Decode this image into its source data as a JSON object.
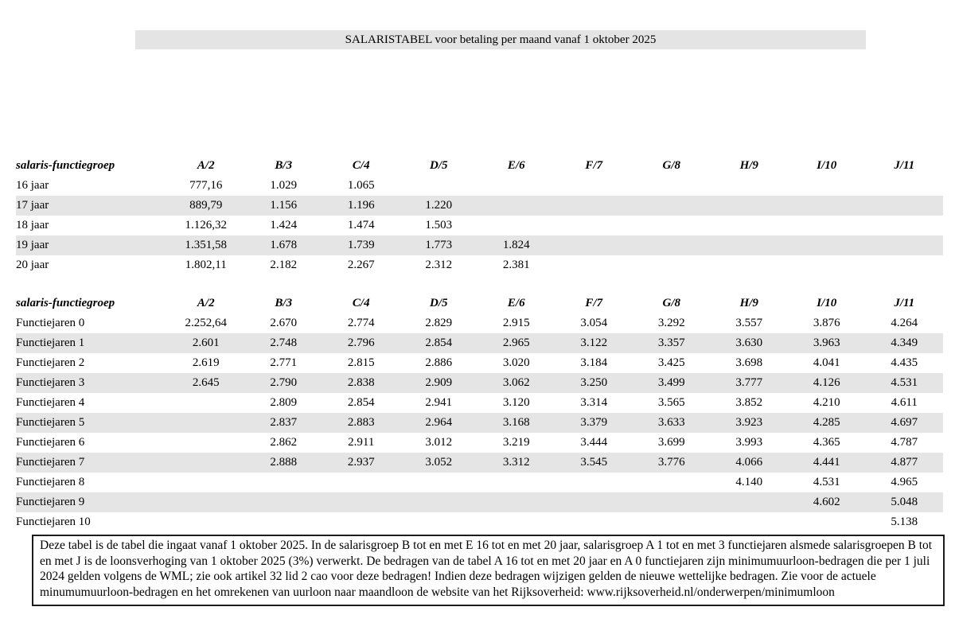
{
  "title_bar": {
    "text": "SALARISTABEL voor betaling per maand vanaf 1 oktober 2025"
  },
  "columns": {
    "label_header": "salaris-functiegroep",
    "groups": [
      "A/2",
      "B/3",
      "C/4",
      "D/5",
      "E/6",
      "F/7",
      "G/8",
      "H/9",
      "I/10",
      "J/11"
    ]
  },
  "youth_table": {
    "rows": [
      {
        "label": "16 jaar",
        "values": [
          "777,16",
          "1.029",
          "1.065",
          "",
          "",
          "",
          "",
          "",
          "",
          ""
        ]
      },
      {
        "label": "17 jaar",
        "values": [
          "889,79",
          "1.156",
          "1.196",
          "1.220",
          "",
          "",
          "",
          "",
          "",
          ""
        ]
      },
      {
        "label": "18 jaar",
        "values": [
          "1.126,32",
          "1.424",
          "1.474",
          "1.503",
          "",
          "",
          "",
          "",
          "",
          ""
        ]
      },
      {
        "label": "19 jaar",
        "values": [
          "1.351,58",
          "1.678",
          "1.739",
          "1.773",
          "1.824",
          "",
          "",
          "",
          "",
          ""
        ]
      },
      {
        "label": "20 jaar",
        "values": [
          "1.802,11",
          "2.182",
          "2.267",
          "2.312",
          "2.381",
          "",
          "",
          "",
          "",
          ""
        ]
      }
    ]
  },
  "functiejaren_table": {
    "rows": [
      {
        "label": "Functiejaren 0",
        "values": [
          "2.252,64",
          "2.670",
          "2.774",
          "2.829",
          "2.915",
          "3.054",
          "3.292",
          "3.557",
          "3.876",
          "4.264"
        ]
      },
      {
        "label": "Functiejaren 1",
        "values": [
          "2.601",
          "2.748",
          "2.796",
          "2.854",
          "2.965",
          "3.122",
          "3.357",
          "3.630",
          "3.963",
          "4.349"
        ]
      },
      {
        "label": "Functiejaren 2",
        "values": [
          "2.619",
          "2.771",
          "2.815",
          "2.886",
          "3.020",
          "3.184",
          "3.425",
          "3.698",
          "4.041",
          "4.435"
        ]
      },
      {
        "label": "Functiejaren 3",
        "values": [
          "2.645",
          "2.790",
          "2.838",
          "2.909",
          "3.062",
          "3.250",
          "3.499",
          "3.777",
          "4.126",
          "4.531"
        ]
      },
      {
        "label": "Functiejaren 4",
        "values": [
          "",
          "2.809",
          "2.854",
          "2.941",
          "3.120",
          "3.314",
          "3.565",
          "3.852",
          "4.210",
          "4.611"
        ]
      },
      {
        "label": "Functiejaren 5",
        "values": [
          "",
          "2.837",
          "2.883",
          "2.964",
          "3.168",
          "3.379",
          "3.633",
          "3.923",
          "4.285",
          "4.697"
        ]
      },
      {
        "label": "Functiejaren 6",
        "values": [
          "",
          "2.862",
          "2.911",
          "3.012",
          "3.219",
          "3.444",
          "3.699",
          "3.993",
          "4.365",
          "4.787"
        ]
      },
      {
        "label": "Functiejaren 7",
        "values": [
          "",
          "2.888",
          "2.937",
          "3.052",
          "3.312",
          "3.545",
          "3.776",
          "4.066",
          "4.441",
          "4.877"
        ]
      },
      {
        "label": "Functiejaren 8",
        "values": [
          "",
          "",
          "",
          "",
          "",
          "",
          "",
          "4.140",
          "4.531",
          "4.965"
        ]
      },
      {
        "label": "Functiejaren 9",
        "values": [
          "",
          "",
          "",
          "",
          "",
          "",
          "",
          "",
          "4.602",
          "5.048"
        ]
      },
      {
        "label": "Functiejaren 10",
        "values": [
          "",
          "",
          "",
          "",
          "",
          "",
          "",
          "",
          "",
          "5.138"
        ]
      }
    ]
  },
  "footnote": {
    "text": "Deze tabel is de tabel die ingaat vanaf 1 oktober 2025. In de salarisgroep B tot en met E 16 tot en met 20 jaar, salarisgroep A 1 tot en met 3 functiejaren alsmede salarisgroepen B tot en met J is de loonsverhoging van 1 oktober 2025 (3%) verwerkt. De bedragen van de tabel A 16 tot en met 20 jaar en A 0 functiejaren zijn minimumuurloon-bedragen die per 1 juli 2024 gelden volgens de WML; zie ook artikel 32 lid 2 cao voor deze bedragen! Indien deze bedragen wijzigen gelden de nieuwe wettelijke bedragen. Zie voor de actuele minumumuurloon-bedragen en het omrekenen van uurloon naar maandloon de website van het Rijksoverheid: www.rijksoverheid.nl/onderwerpen/minimumloon"
  },
  "colors": {
    "row_band": "#e5e5e5",
    "title_bg": "#e4e4e4",
    "box_border": "#1c1c1c"
  }
}
